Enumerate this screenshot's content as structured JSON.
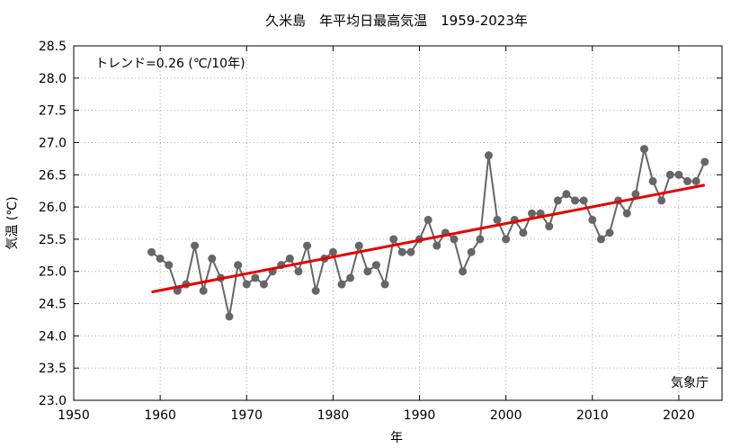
{
  "chart_data": {
    "type": "line",
    "title": "久米島　年平均日最高気温　1959-2023年",
    "xlabel": "年",
    "ylabel": "気温 (℃)",
    "xlim": [
      1950,
      2025
    ],
    "ylim": [
      23.0,
      28.5
    ],
    "x_ticks": [
      "1950",
      "1960",
      "1970",
      "1980",
      "1990",
      "2000",
      "2010",
      "2020"
    ],
    "y_ticks": [
      "23.0",
      "23.5",
      "24.0",
      "24.5",
      "25.0",
      "25.5",
      "26.0",
      "26.5",
      "27.0",
      "27.5",
      "28.0",
      "28.5"
    ],
    "grid": true,
    "trend_text": "トレンド=0.26 (℃/10年)",
    "source_text": "気象庁",
    "colors": {
      "series": "#666666",
      "trend": "#e60000",
      "grid": "#aaaaaa",
      "axis": "#000000"
    },
    "series": [
      {
        "x": [
          1959,
          1960,
          1961,
          1962,
          1963,
          1964,
          1965,
          1966,
          1967,
          1968,
          1969,
          1970,
          1971,
          1972,
          1973,
          1974,
          1975,
          1976,
          1977,
          1978,
          1979,
          1980,
          1981,
          1982,
          1983,
          1984,
          1985,
          1986,
          1987,
          1988,
          1989,
          1990,
          1991,
          1992,
          1993,
          1994,
          1995,
          1996,
          1997,
          1998,
          1999,
          2000,
          2001,
          2002,
          2003,
          2004,
          2005,
          2006,
          2007,
          2008,
          2009,
          2010,
          2011,
          2012,
          2013,
          2014,
          2015,
          2016,
          2017,
          2018,
          2019,
          2020,
          2021,
          2022,
          2023
        ],
        "values": [
          25.3,
          25.2,
          25.1,
          24.7,
          24.8,
          25.4,
          24.7,
          25.2,
          24.9,
          24.3,
          25.1,
          24.8,
          24.9,
          24.8,
          25.0,
          25.1,
          25.2,
          25.0,
          25.4,
          24.7,
          25.2,
          25.3,
          24.8,
          24.9,
          25.4,
          25.0,
          25.1,
          24.8,
          25.5,
          25.3,
          25.3,
          25.5,
          25.8,
          25.4,
          25.6,
          25.5,
          25.0,
          25.3,
          25.5,
          26.8,
          25.8,
          25.5,
          25.8,
          25.6,
          25.9,
          25.9,
          25.7,
          26.1,
          26.2,
          26.1,
          26.1,
          25.8,
          25.5,
          25.6,
          26.1,
          25.9,
          26.2,
          26.9,
          26.4,
          26.1,
          26.5,
          26.5,
          26.4,
          26.4,
          26.7
        ]
      }
    ],
    "trend": {
      "x": [
        1959,
        2023
      ],
      "values": [
        24.68,
        26.34
      ]
    }
  }
}
